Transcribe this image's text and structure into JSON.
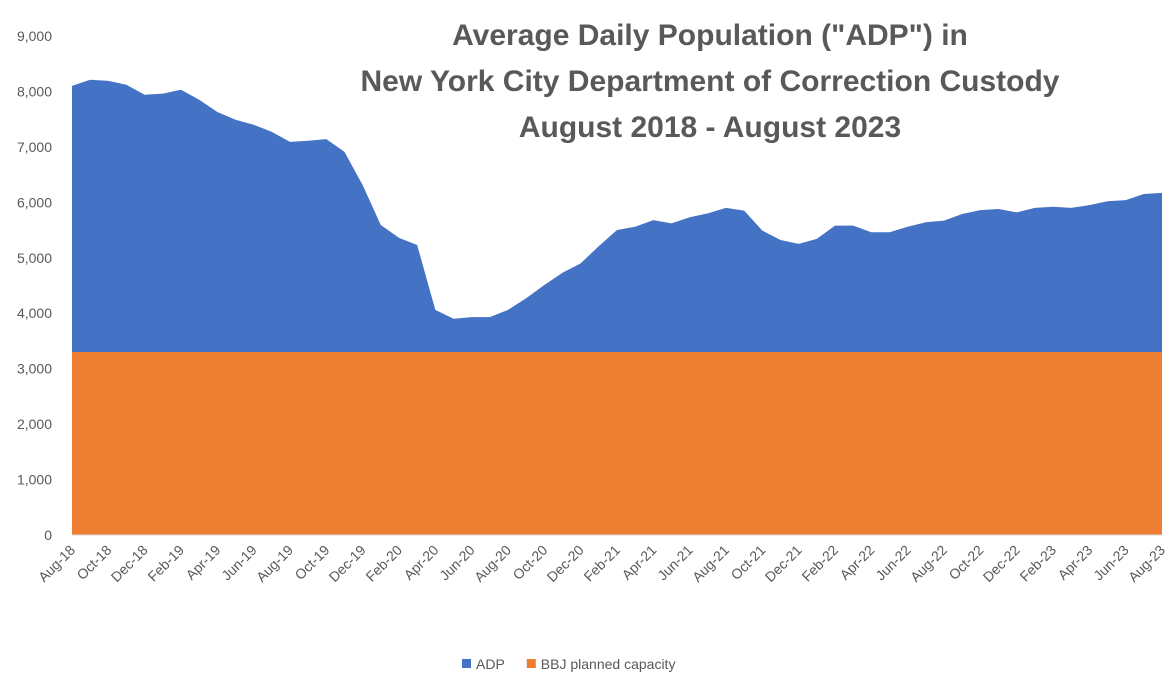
{
  "chart_data": {
    "type": "area",
    "title": [
      "Average Daily Population (\"ADP\") in",
      "New York City Department of Correction Custody",
      "August 2018 - August 2023"
    ],
    "categories": [
      "Aug-18",
      null,
      "Oct-18",
      null,
      "Dec-18",
      null,
      "Feb-19",
      null,
      "Apr-19",
      null,
      "Jun-19",
      null,
      "Aug-19",
      null,
      "Oct-19",
      null,
      "Dec-19",
      null,
      "Feb-20",
      null,
      "Apr-20",
      null,
      "Jun-20",
      null,
      "Aug-20",
      null,
      "Oct-20",
      null,
      "Dec-20",
      null,
      "Feb-21",
      null,
      "Apr-21",
      null,
      "Jun-21",
      null,
      "Aug-21",
      null,
      "Oct-21",
      null,
      "Dec-21",
      null,
      "Feb-22",
      null,
      "Apr-22",
      null,
      "Jun-22",
      null,
      "Aug-22",
      null,
      "Oct-22",
      null,
      "Dec-22",
      null,
      "Feb-23",
      null,
      "Apr-23",
      null,
      "Jun-23",
      null,
      "Aug-23"
    ],
    "series": [
      {
        "name": "ADP",
        "color": "#4472c4",
        "values": [
          8100,
          8210,
          8190,
          8120,
          7940,
          7960,
          8030,
          7850,
          7630,
          7490,
          7400,
          7270,
          7090,
          7110,
          7140,
          6910,
          6310,
          5590,
          5360,
          5230,
          4060,
          3900,
          3930,
          3930,
          4060,
          4270,
          4510,
          4730,
          4900,
          5210,
          5500,
          5560,
          5680,
          5620,
          5730,
          5800,
          5900,
          5850,
          5490,
          5320,
          5250,
          5340,
          5580,
          5580,
          5460,
          5460,
          5560,
          5640,
          5670,
          5790,
          5860,
          5880,
          5820,
          5900,
          5920,
          5900,
          5950,
          6020,
          6040,
          6150,
          6170
        ]
      },
      {
        "name": "BBJ planned capacity",
        "color": "#ed7d31",
        "values": [
          3300,
          3300,
          3300,
          3300,
          3300,
          3300,
          3300,
          3300,
          3300,
          3300,
          3300,
          3300,
          3300,
          3300,
          3300,
          3300,
          3300,
          3300,
          3300,
          3300,
          3300,
          3300,
          3300,
          3300,
          3300,
          3300,
          3300,
          3300,
          3300,
          3300,
          3300,
          3300,
          3300,
          3300,
          3300,
          3300,
          3300,
          3300,
          3300,
          3300,
          3300,
          3300,
          3300,
          3300,
          3300,
          3300,
          3300,
          3300,
          3300,
          3300,
          3300,
          3300,
          3300,
          3300,
          3300,
          3300,
          3300,
          3300,
          3300,
          3300,
          3300
        ]
      }
    ],
    "ylim": [
      0,
      9000
    ],
    "yticks": [
      0,
      {
        "value": 1000,
        "label": "1,000"
      },
      {
        "value": 2000,
        "label": "2,000"
      },
      {
        "value": 3000,
        "label": "3,000"
      },
      {
        "value": 4000,
        "label": "4,000"
      },
      {
        "value": 5000,
        "label": "5,000"
      },
      {
        "value": 6000,
        "label": "6,000"
      },
      {
        "value": 7000,
        "label": "7,000"
      },
      {
        "value": 8000,
        "label": "8,000"
      },
      {
        "value": 9000,
        "label": "9,000"
      }
    ],
    "grid": false,
    "legend": "bottom"
  }
}
